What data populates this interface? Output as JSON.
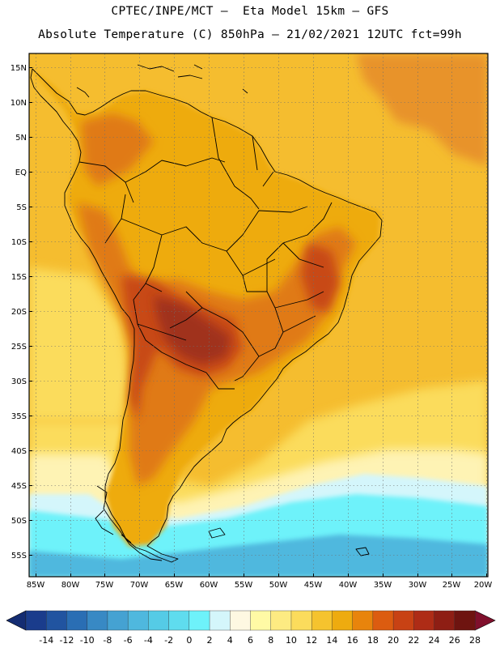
{
  "header": {
    "line1": "CPTEC/INPE/MCT –  Eta Model 15km – GFS",
    "line2": "Absolute Temperature (C) 850hPa – 21/02/2021 12UTC fct=99h"
  },
  "axes": {
    "lat_labels": [
      "15N",
      "10N",
      "5N",
      "EQ",
      "5S",
      "10S",
      "15S",
      "20S",
      "25S",
      "30S",
      "35S",
      "40S",
      "45S",
      "50S",
      "55S"
    ],
    "lon_labels": [
      "85W",
      "80W",
      "75W",
      "70W",
      "65W",
      "60W",
      "55W",
      "50W",
      "45W",
      "40W",
      "35W",
      "30W",
      "25W",
      "20W"
    ]
  },
  "colorbar": {
    "labels": [
      "-14",
      "-12",
      "-10",
      "-8",
      "-6",
      "-4",
      "-2",
      "0",
      "2",
      "4",
      "6",
      "8",
      "10",
      "12",
      "14",
      "16",
      "18",
      "20",
      "22",
      "24",
      "26",
      "28"
    ],
    "colors": [
      "#1a3c8c",
      "#2154a0",
      "#2a6eb4",
      "#3889c4",
      "#45a2d2",
      "#4fb8de",
      "#55cbe6",
      "#5fdcee",
      "#6ef2fa",
      "#d4f6fb",
      "#fef8e2",
      "#fffaa5",
      "#fdeb82",
      "#fbdc5c",
      "#f5c32e",
      "#eeab0f",
      "#e8840c",
      "#dc5c10",
      "#c84214",
      "#ae2c16",
      "#8e1e14",
      "#6e1410"
    ],
    "low_color": "#142c72",
    "high_color": "#80102c"
  },
  "map": {
    "region": "South America",
    "palette": {
      "ocean_warm": "#f5bd2f",
      "ocean_mid": "#fbdc5c",
      "ocean_pale": "#fef3b4",
      "ocean_cool": "#d4f6fb",
      "ocean_cold": "#6ef2fa",
      "polar": "#4fb8de",
      "land_base": "#eeab0f",
      "land_hot": "#e07a14",
      "land_hotter": "#c84a18",
      "land_hottest": "#a0301a",
      "atlantic_nw": "#e8932a"
    }
  }
}
